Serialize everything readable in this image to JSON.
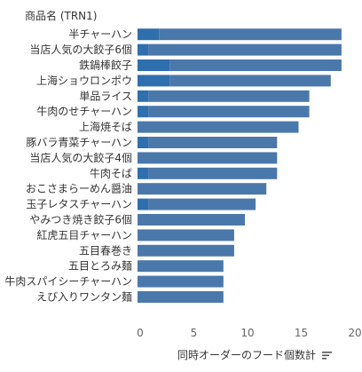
{
  "chart_data": {
    "type": "bar",
    "orientation": "horizontal",
    "stacked": true,
    "row_header": "商品名 (TRN1)",
    "xlabel": "同時オーダーのフード個数計",
    "xlim": [
      0,
      20
    ],
    "xticks": [
      0,
      5,
      10,
      15,
      20
    ],
    "grid": false,
    "legend": "none",
    "categories": [
      "半チャーハン",
      "当店人気の大餃子6個",
      "鉄鍋棒餃子",
      "上海ショウロンポウ",
      "単品ライス",
      "牛肉のせチャーハン",
      "上海焼そば",
      "豚バラ青菜チャーハン",
      "当店人気の大餃子4個",
      "牛肉そば",
      "おこさまらーめん醤油",
      "玉子レタスチャーハン",
      "やみつき焼き餃子6個",
      "紅虎五目チャーハン",
      "五目春巻き",
      "五目とろみ麺",
      "牛肉スパイシーチャーハン",
      "えび入りワンタン麺"
    ],
    "series": [
      {
        "values": [
          2,
          1,
          3,
          3,
          1,
          1,
          0,
          1,
          0,
          1,
          0,
          1,
          0,
          0,
          0,
          0,
          0,
          0
        ],
        "color": "#2f6fad"
      },
      {
        "values": [
          17,
          18,
          16,
          15,
          15,
          15,
          15,
          12,
          13,
          12,
          12,
          10,
          10,
          9,
          9,
          8,
          8,
          8
        ],
        "color": "#4b78aa"
      }
    ]
  }
}
